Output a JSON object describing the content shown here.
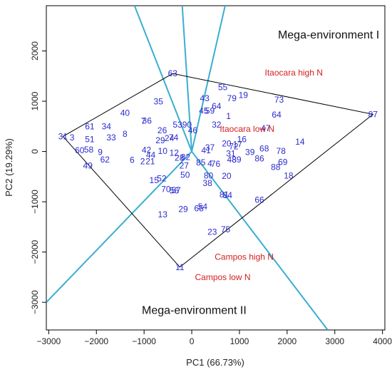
{
  "chart_data": {
    "type": "scatter",
    "subtype": "GGE biplot (which-won-where)",
    "xlabel": "PC1  (66.73%)",
    "ylabel": "PC2  (19.29%)",
    "xlim": [
      -3050,
      4050
    ],
    "ylim": [
      -3550,
      2900
    ],
    "x_ticks": [
      -3000,
      -2000,
      -1000,
      0,
      1000,
      2000,
      3000,
      4000
    ],
    "y_ticks": [
      -3000,
      -2000,
      -1000,
      0,
      1000,
      2000
    ],
    "x_tick_labels": [
      "−3000",
      "−2000",
      "−1000",
      "0",
      "1000",
      "2000",
      "3000",
      "4000"
    ],
    "y_tick_labels": [
      "−3000",
      "−2000",
      "−1000",
      "0",
      "1000",
      "2000"
    ],
    "colors": {
      "genotype": "#2b2bd0",
      "environment": "#d42020",
      "sector_lines": "#3aaed0",
      "polygon": "#000000"
    },
    "polygon_vertices": [
      "63",
      "87",
      "11",
      "31"
    ],
    "sector_line_ends": [
      {
        "x": -1200,
        "y": 2900
      },
      {
        "x": 700,
        "y": 2900
      },
      {
        "x": -3050,
        "y": -3000
      },
      {
        "x": 2850,
        "y": -3550
      },
      {
        "x": -200,
        "y": 2900
      }
    ],
    "genotypes": [
      {
        "label": "63",
        "x": -400,
        "y": 1550
      },
      {
        "label": "55",
        "x": 650,
        "y": 1280
      },
      {
        "label": "19",
        "x": 1080,
        "y": 1120
      },
      {
        "label": "79",
        "x": 840,
        "y": 1060
      },
      {
        "label": "73",
        "x": 1830,
        "y": 1030
      },
      {
        "label": "43",
        "x": 270,
        "y": 1060
      },
      {
        "label": "35",
        "x": -700,
        "y": 990
      },
      {
        "label": "64",
        "x": 520,
        "y": 900
      },
      {
        "label": "45",
        "x": 250,
        "y": 810
      },
      {
        "label": "59",
        "x": 380,
        "y": 810
      },
      {
        "label": "64",
        "x": 1780,
        "y": 730
      },
      {
        "label": "87",
        "x": 3800,
        "y": 740
      },
      {
        "label": "40",
        "x": -1400,
        "y": 770
      },
      {
        "label": "1",
        "x": 770,
        "y": 700
      },
      {
        "label": "36",
        "x": -940,
        "y": 610
      },
      {
        "label": "7",
        "x": -1020,
        "y": 600
      },
      {
        "label": "53",
        "x": -300,
        "y": 530
      },
      {
        "label": "90",
        "x": -100,
        "y": 530
      },
      {
        "label": "32",
        "x": 520,
        "y": 530
      },
      {
        "label": "47",
        "x": 1550,
        "y": 460
      },
      {
        "label": "61",
        "x": -2140,
        "y": 500
      },
      {
        "label": "34",
        "x": -1790,
        "y": 500
      },
      {
        "label": "26",
        "x": -620,
        "y": 420
      },
      {
        "label": "46",
        "x": 20,
        "y": 420
      },
      {
        "label": "8",
        "x": -1400,
        "y": 350
      },
      {
        "label": "31",
        "x": -2700,
        "y": 300
      },
      {
        "label": "3",
        "x": -2510,
        "y": 280
      },
      {
        "label": "51",
        "x": -2140,
        "y": 240
      },
      {
        "label": "33",
        "x": -1690,
        "y": 280
      },
      {
        "label": "74",
        "x": -380,
        "y": 280
      },
      {
        "label": "24",
        "x": -470,
        "y": 260
      },
      {
        "label": "29",
        "x": -660,
        "y": 220
      },
      {
        "label": "16",
        "x": 1050,
        "y": 240
      },
      {
        "label": "14",
        "x": 2270,
        "y": 190
      },
      {
        "label": "20",
        "x": 730,
        "y": 160
      },
      {
        "label": "17",
        "x": 960,
        "y": 140
      },
      {
        "label": "72",
        "x": 880,
        "y": 100
      },
      {
        "label": "37",
        "x": 380,
        "y": 80
      },
      {
        "label": "41",
        "x": 300,
        "y": 20
      },
      {
        "label": "60",
        "x": -2350,
        "y": 20
      },
      {
        "label": "58",
        "x": -2160,
        "y": 40
      },
      {
        "label": "9",
        "x": -1920,
        "y": -10
      },
      {
        "label": "68",
        "x": 1520,
        "y": 60
      },
      {
        "label": "78",
        "x": 1870,
        "y": 10
      },
      {
        "label": "39",
        "x": 1220,
        "y": -10
      },
      {
        "label": "42",
        "x": -950,
        "y": 30
      },
      {
        "label": "10",
        "x": -610,
        "y": 10
      },
      {
        "label": "12",
        "x": -370,
        "y": -30
      },
      {
        "label": "31",
        "x": 820,
        "y": -40
      },
      {
        "label": "44",
        "x": -860,
        "y": -70
      },
      {
        "label": "62",
        "x": -1820,
        "y": -160
      },
      {
        "label": "6",
        "x": -1250,
        "y": -170
      },
      {
        "label": "2",
        "x": -1030,
        "y": -200
      },
      {
        "label": "21",
        "x": -870,
        "y": -200
      },
      {
        "label": "82",
        "x": -130,
        "y": -110
      },
      {
        "label": "28",
        "x": -260,
        "y": -130
      },
      {
        "label": "86",
        "x": 1420,
        "y": -140
      },
      {
        "label": "48",
        "x": 840,
        "y": -160
      },
      {
        "label": "89",
        "x": 940,
        "y": -160
      },
      {
        "label": "85",
        "x": 190,
        "y": -220
      },
      {
        "label": "76",
        "x": 500,
        "y": -250
      },
      {
        "label": "4",
        "x": 380,
        "y": -240
      },
      {
        "label": "69",
        "x": 1910,
        "y": -210
      },
      {
        "label": "27",
        "x": -160,
        "y": -280
      },
      {
        "label": "49",
        "x": -2180,
        "y": -280
      },
      {
        "label": "88",
        "x": 1760,
        "y": -310
      },
      {
        "label": "50",
        "x": -140,
        "y": -470
      },
      {
        "label": "80",
        "x": 350,
        "y": -480
      },
      {
        "label": "20",
        "x": 730,
        "y": -490
      },
      {
        "label": "18",
        "x": 2030,
        "y": -480
      },
      {
        "label": "52",
        "x": -630,
        "y": -540
      },
      {
        "label": "15",
        "x": -790,
        "y": -570
      },
      {
        "label": "38",
        "x": 330,
        "y": -630
      },
      {
        "label": "70",
        "x": -540,
        "y": -750
      },
      {
        "label": "57",
        "x": -330,
        "y": -770
      },
      {
        "label": "56",
        "x": -370,
        "y": -780
      },
      {
        "label": "81",
        "x": 680,
        "y": -860
      },
      {
        "label": "84",
        "x": 750,
        "y": -870
      },
      {
        "label": "66",
        "x": 1420,
        "y": -960
      },
      {
        "label": "29",
        "x": -180,
        "y": -1150
      },
      {
        "label": "65",
        "x": 150,
        "y": -1130
      },
      {
        "label": "54",
        "x": 230,
        "y": -1100
      },
      {
        "label": "13",
        "x": -610,
        "y": -1250
      },
      {
        "label": "75",
        "x": 710,
        "y": -1550
      },
      {
        "label": "23",
        "x": 430,
        "y": -1600
      },
      {
        "label": "11",
        "x": -250,
        "y": -2300
      }
    ],
    "environments": [
      {
        "label": "Itaocara high N",
        "x": 2140,
        "y": 1570
      },
      {
        "label": "Itaocara low N",
        "x": 1160,
        "y": 450
      },
      {
        "label": "Campos high N",
        "x": 1100,
        "y": -2100
      },
      {
        "label": "Campos low N",
        "x": 650,
        "y": -2500
      }
    ],
    "annotations": [
      {
        "label": "Mega-environment I",
        "x": 2870,
        "y": 2320
      },
      {
        "label": "Mega-environment II",
        "x": 50,
        "y": -3160
      }
    ]
  }
}
